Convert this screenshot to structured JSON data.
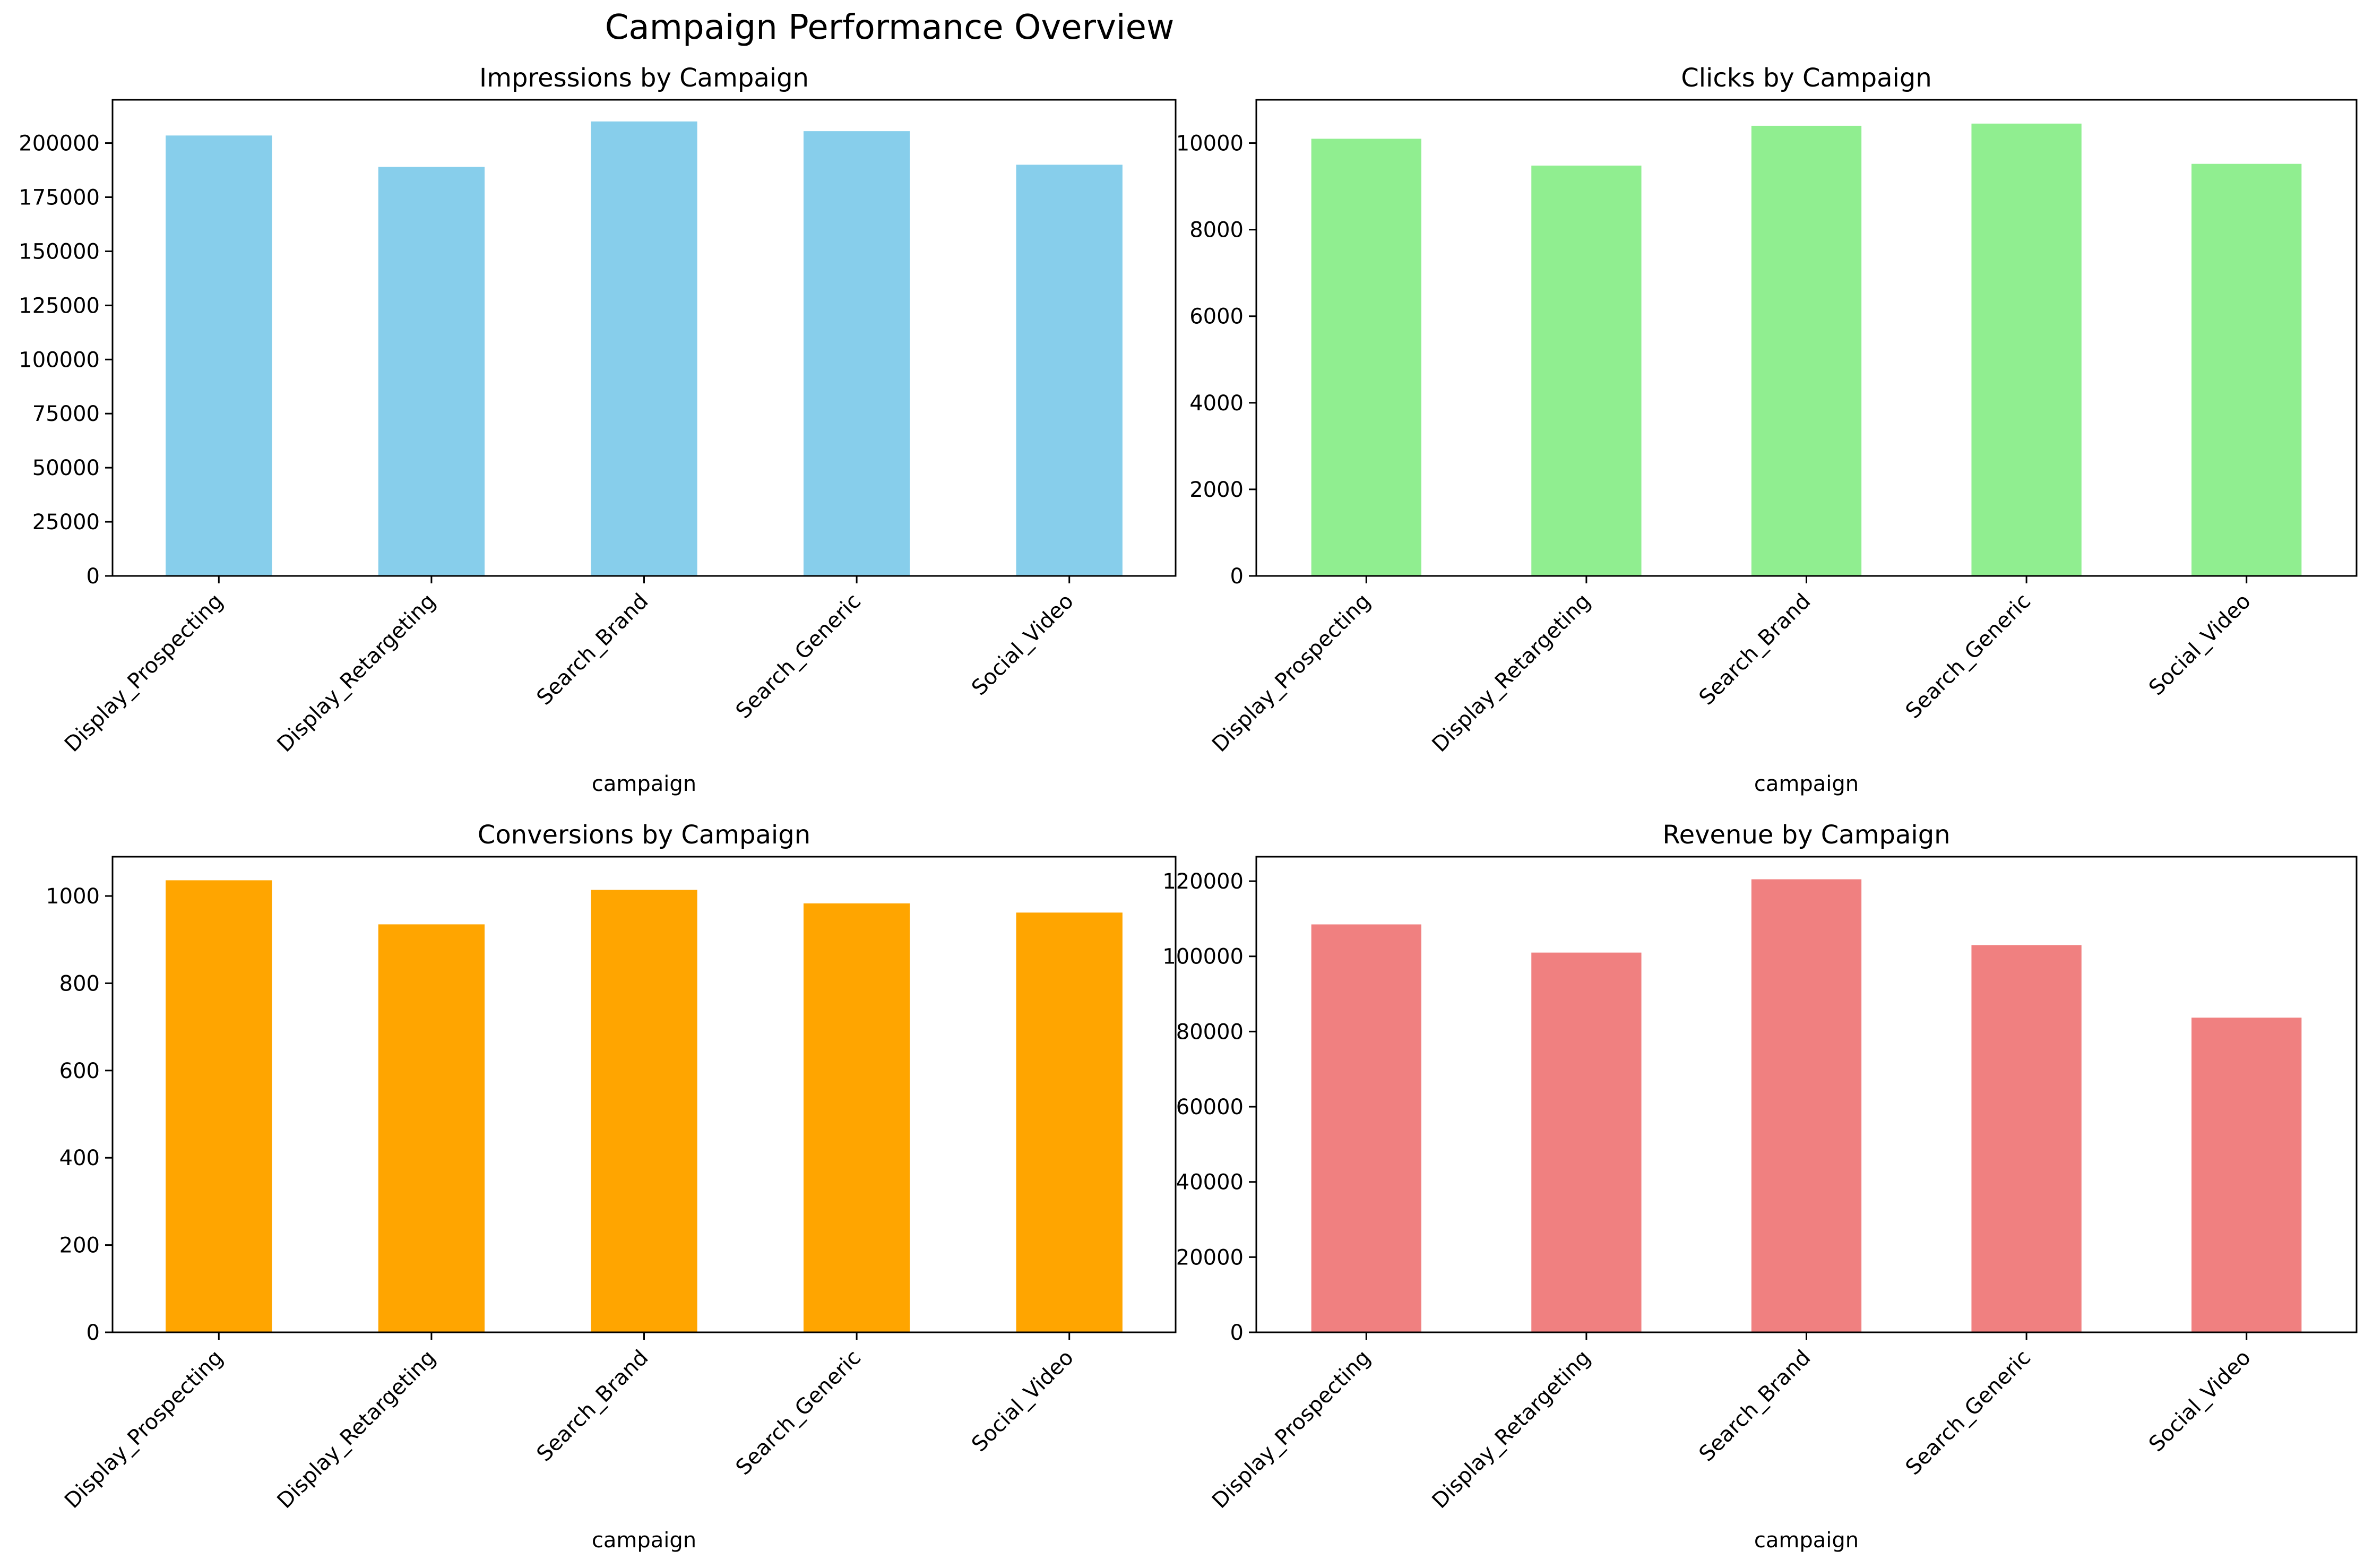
{
  "figure": {
    "title": "Campaign Performance Overview"
  },
  "colors": {
    "impressions": "#87CEEB",
    "clicks": "#90EE90",
    "conversions": "#FFA500",
    "revenue": "#F08080"
  },
  "chart_data": [
    {
      "type": "bar",
      "title": "Impressions by Campaign",
      "xlabel": "campaign",
      "ylabel": "",
      "categories": [
        "Display_Prospecting",
        "Display_Retargeting",
        "Search_Brand",
        "Search_Generic",
        "Social_Video"
      ],
      "values": [
        203500,
        189000,
        210000,
        205500,
        190000
      ],
      "ylim": [
        0,
        220000
      ],
      "yticks": [
        0,
        25000,
        50000,
        75000,
        100000,
        125000,
        150000,
        175000,
        200000
      ],
      "color": "#87CEEB",
      "grid": false
    },
    {
      "type": "bar",
      "title": "Clicks by Campaign",
      "xlabel": "campaign",
      "ylabel": "",
      "categories": [
        "Display_Prospecting",
        "Display_Retargeting",
        "Search_Brand",
        "Search_Generic",
        "Social_Video"
      ],
      "values": [
        10100,
        9480,
        10400,
        10450,
        9520
      ],
      "ylim": [
        0,
        11000
      ],
      "yticks": [
        0,
        2000,
        4000,
        6000,
        8000,
        10000
      ],
      "color": "#90EE90",
      "grid": false
    },
    {
      "type": "bar",
      "title": "Conversions by Campaign",
      "xlabel": "campaign",
      "ylabel": "",
      "categories": [
        "Display_Prospecting",
        "Display_Retargeting",
        "Search_Brand",
        "Search_Generic",
        "Social_Video"
      ],
      "values": [
        1036,
        935,
        1014,
        983,
        962
      ],
      "ylim": [
        0,
        1090
      ],
      "yticks": [
        0,
        200,
        400,
        600,
        800,
        1000
      ],
      "color": "#FFA500",
      "grid": false
    },
    {
      "type": "bar",
      "title": "Revenue by Campaign",
      "xlabel": "campaign",
      "ylabel": "",
      "categories": [
        "Display_Prospecting",
        "Display_Retargeting",
        "Search_Brand",
        "Search_Generic",
        "Social_Video"
      ],
      "values": [
        108500,
        101000,
        120500,
        103000,
        83700
      ],
      "ylim": [
        0,
        126500
      ],
      "yticks": [
        0,
        20000,
        40000,
        60000,
        80000,
        100000,
        120000
      ],
      "color": "#F08080",
      "grid": false
    }
  ]
}
